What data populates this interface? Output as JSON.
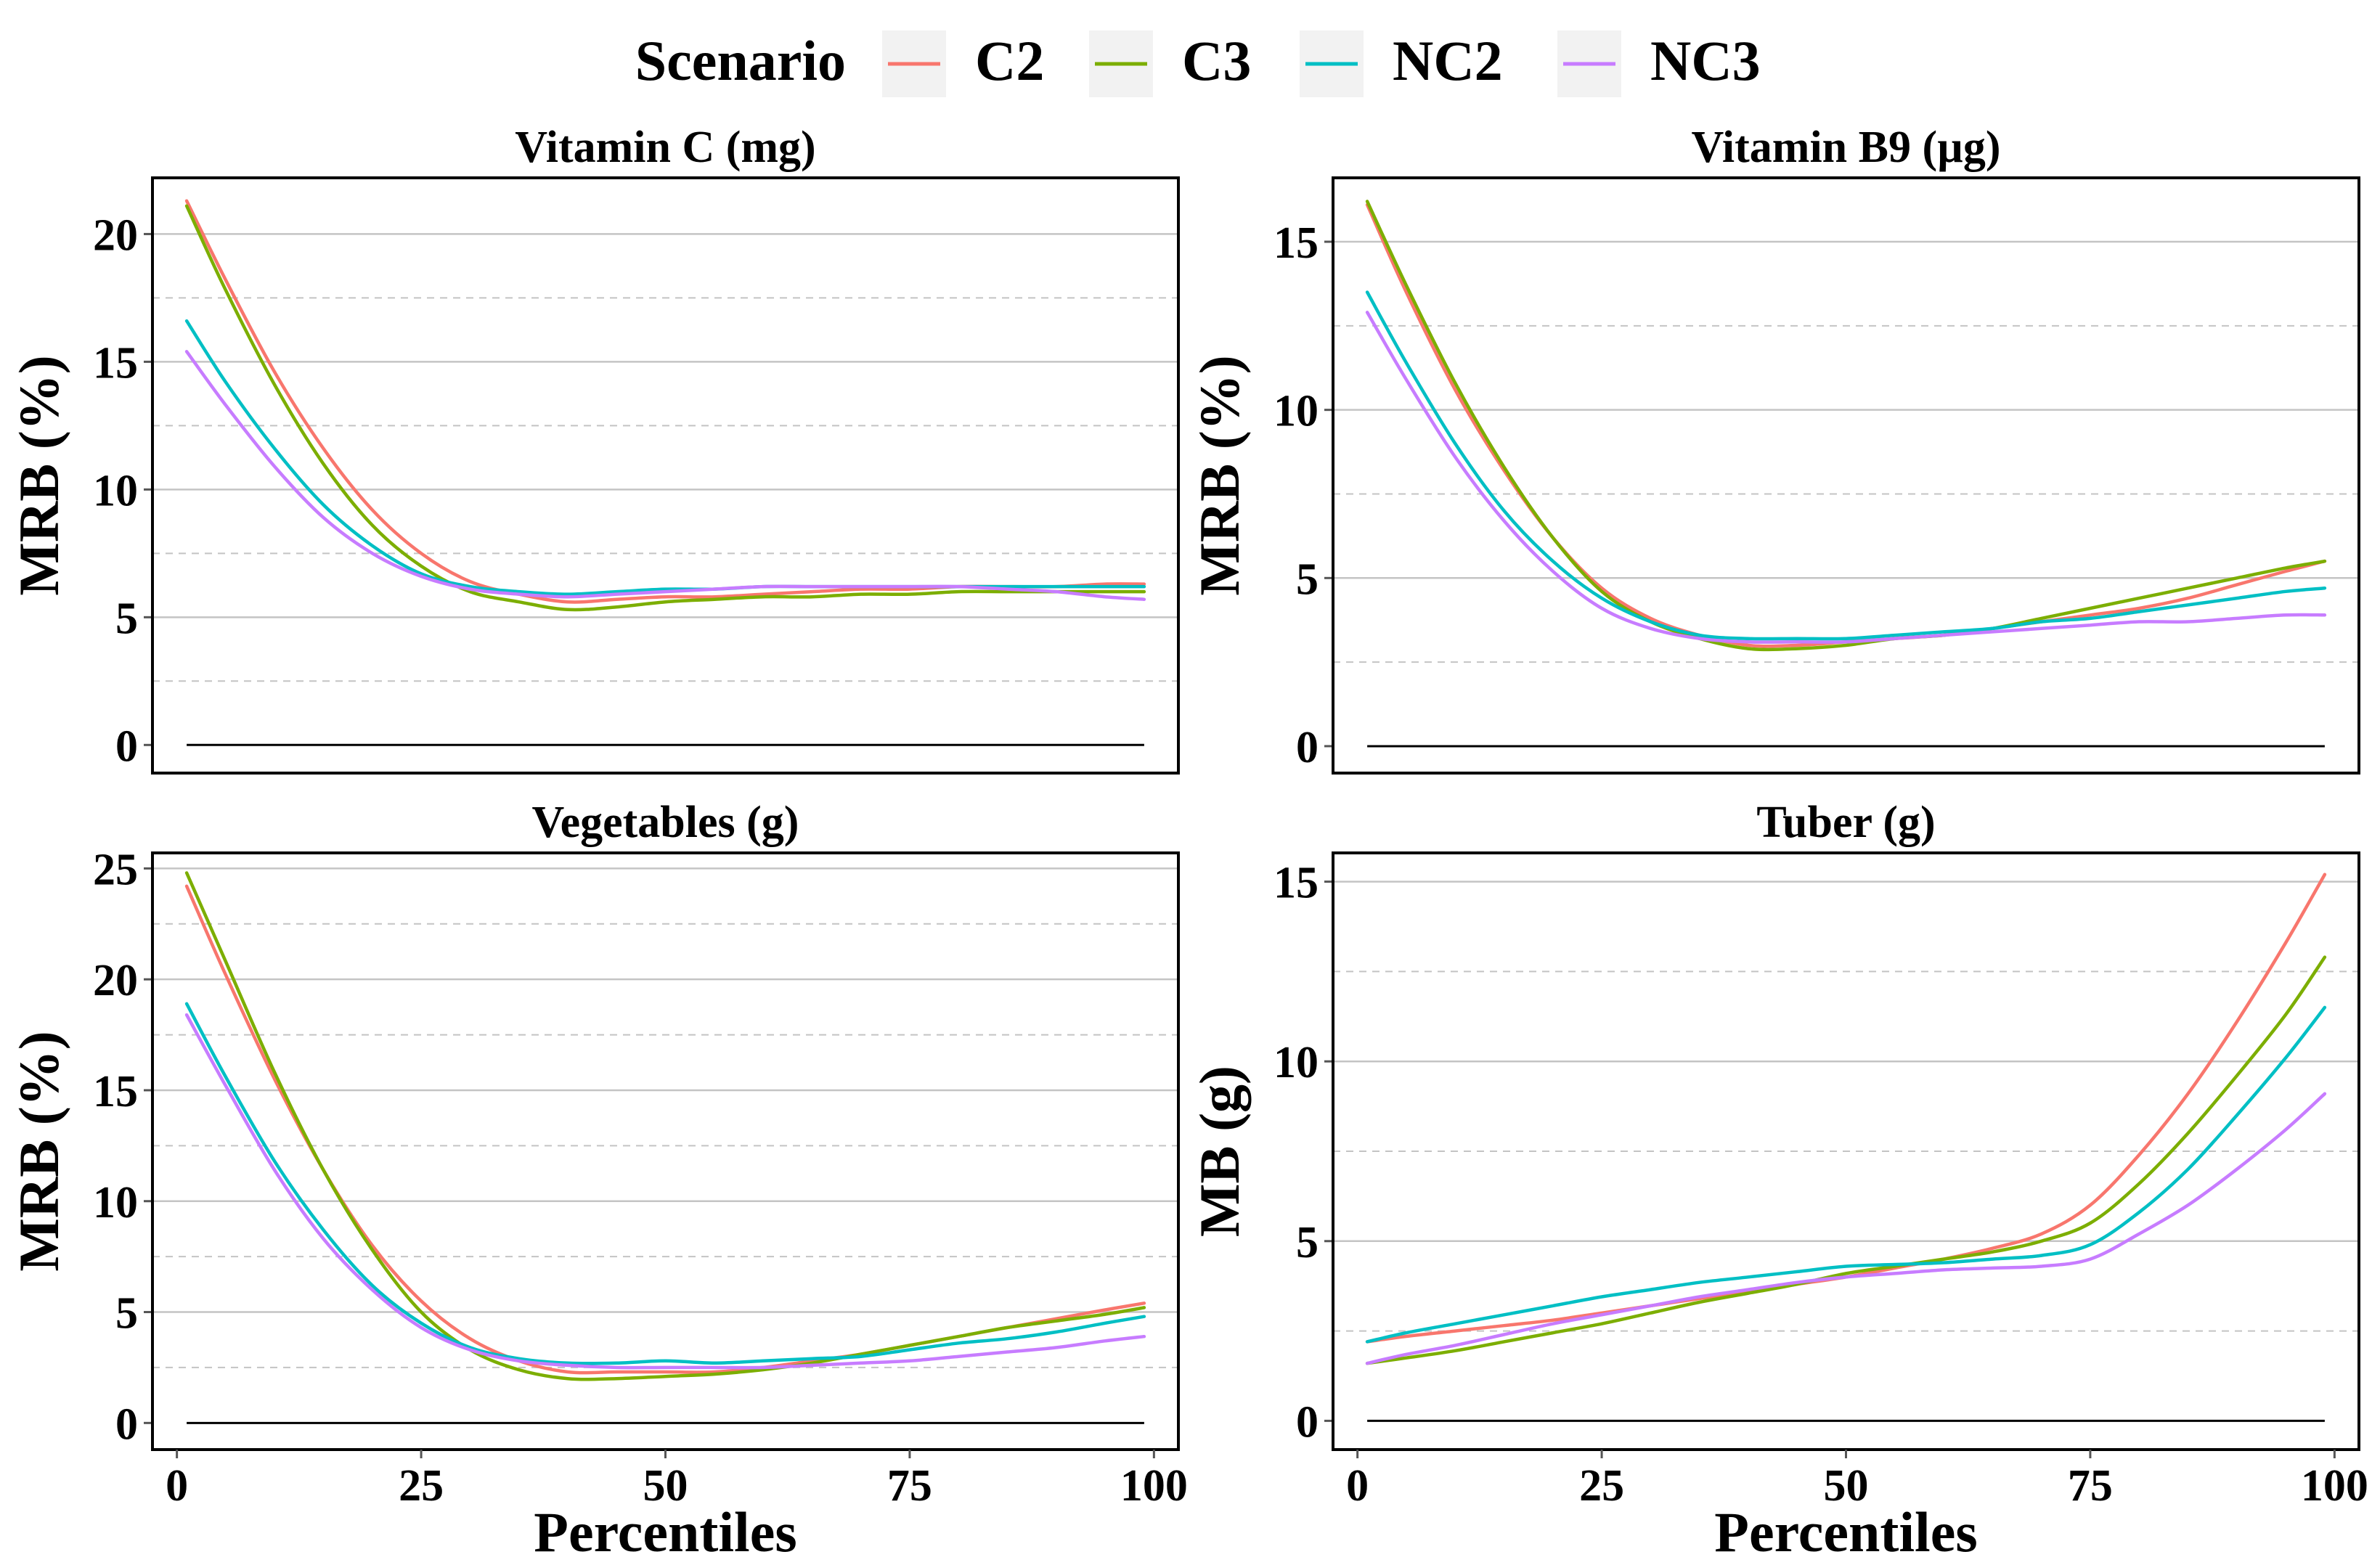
{
  "legend": {
    "title": "Scenario",
    "items": [
      {
        "name": "C2",
        "color": "#F8766D"
      },
      {
        "name": "C3",
        "color": "#7CAE00"
      },
      {
        "name": "NC2",
        "color": "#00BFC4"
      },
      {
        "name": "NC3",
        "color": "#C77CFF"
      }
    ]
  },
  "chart_data": [
    {
      "type": "line",
      "title": "Vitamin C (mg)",
      "xlabel": "",
      "ylabel": "MRB (%)",
      "xlim": [
        -2.5,
        102.5
      ],
      "ylim": [
        -1.1,
        22.2
      ],
      "xticks": [
        0,
        25,
        50,
        75,
        100
      ],
      "show_xticks": false,
      "yticks": [
        0,
        5,
        10,
        15,
        20
      ],
      "minor_yticks": [
        2.5,
        7.5,
        12.5,
        17.5
      ],
      "x": [
        1,
        5,
        10,
        15,
        20,
        25,
        30,
        35,
        40,
        45,
        50,
        55,
        60,
        65,
        70,
        75,
        80,
        85,
        90,
        95,
        99
      ],
      "series": [
        {
          "name": "C2",
          "values": [
            21.3,
            18.2,
            14.6,
            11.6,
            9.2,
            7.5,
            6.4,
            5.9,
            5.6,
            5.7,
            5.8,
            5.8,
            5.9,
            6.0,
            6.1,
            6.1,
            6.2,
            6.2,
            6.2,
            6.3,
            6.3
          ]
        },
        {
          "name": "C3",
          "values": [
            21.1,
            17.8,
            14.1,
            11.0,
            8.6,
            7.0,
            6.0,
            5.6,
            5.3,
            5.4,
            5.6,
            5.7,
            5.8,
            5.8,
            5.9,
            5.9,
            6.0,
            6.0,
            6.0,
            6.0,
            6.0
          ]
        },
        {
          "name": "NC2",
          "values": [
            16.6,
            14.2,
            11.6,
            9.4,
            7.8,
            6.7,
            6.2,
            6.0,
            5.9,
            6.0,
            6.1,
            6.1,
            6.2,
            6.2,
            6.2,
            6.2,
            6.2,
            6.2,
            6.2,
            6.2,
            6.2
          ]
        },
        {
          "name": "NC3",
          "values": [
            15.4,
            13.3,
            10.9,
            8.9,
            7.5,
            6.6,
            6.1,
            5.9,
            5.8,
            5.9,
            6.0,
            6.1,
            6.2,
            6.2,
            6.2,
            6.2,
            6.2,
            6.1,
            6.0,
            5.8,
            5.7
          ]
        }
      ]
    },
    {
      "type": "line",
      "title": "Vitamin B9 (µg)",
      "xlabel": "",
      "ylabel": "MRB (%)",
      "xlim": [
        -2.5,
        102.5
      ],
      "ylim": [
        -0.8,
        16.9
      ],
      "xticks": [
        0,
        25,
        50,
        75,
        100
      ],
      "show_xticks": false,
      "yticks": [
        0,
        5,
        10,
        15
      ],
      "minor_yticks": [
        2.5,
        7.5,
        12.5
      ],
      "x": [
        1,
        5,
        10,
        15,
        20,
        25,
        30,
        35,
        40,
        45,
        50,
        55,
        60,
        65,
        70,
        75,
        80,
        85,
        90,
        95,
        99
      ],
      "series": [
        {
          "name": "C2",
          "values": [
            16.1,
            13.5,
            10.6,
            8.2,
            6.2,
            4.7,
            3.8,
            3.3,
            3.0,
            3.0,
            3.1,
            3.2,
            3.3,
            3.5,
            3.7,
            3.9,
            4.1,
            4.4,
            4.8,
            5.2,
            5.5
          ]
        },
        {
          "name": "C3",
          "values": [
            16.2,
            13.7,
            10.8,
            8.3,
            6.2,
            4.6,
            3.7,
            3.2,
            2.9,
            2.9,
            3.0,
            3.2,
            3.3,
            3.5,
            3.8,
            4.1,
            4.4,
            4.7,
            5.0,
            5.3,
            5.5
          ]
        },
        {
          "name": "NC2",
          "values": [
            13.5,
            11.4,
            9.0,
            7.0,
            5.5,
            4.4,
            3.7,
            3.3,
            3.2,
            3.2,
            3.2,
            3.3,
            3.4,
            3.5,
            3.7,
            3.8,
            4.0,
            4.2,
            4.4,
            4.6,
            4.7
          ]
        },
        {
          "name": "NC3",
          "values": [
            12.9,
            10.9,
            8.6,
            6.7,
            5.2,
            4.1,
            3.5,
            3.2,
            3.1,
            3.1,
            3.1,
            3.2,
            3.3,
            3.4,
            3.5,
            3.6,
            3.7,
            3.7,
            3.8,
            3.9,
            3.9
          ]
        }
      ]
    },
    {
      "type": "line",
      "title": "Vegetables (g)",
      "xlabel": "Percentiles",
      "ylabel": "MRB (%)",
      "xlim": [
        -2.5,
        102.5
      ],
      "ylim": [
        -1.2,
        25.7
      ],
      "xticks": [
        0,
        25,
        50,
        75,
        100
      ],
      "show_xticks": true,
      "yticks": [
        0,
        5,
        10,
        15,
        20,
        25
      ],
      "minor_yticks": [
        2.5,
        7.5,
        12.5,
        17.5,
        22.5
      ],
      "x": [
        1,
        5,
        10,
        15,
        20,
        25,
        30,
        35,
        40,
        45,
        50,
        55,
        60,
        65,
        70,
        75,
        80,
        85,
        90,
        95,
        99
      ],
      "series": [
        {
          "name": "C2",
          "values": [
            24.2,
            20.2,
            15.5,
            11.4,
            8.0,
            5.5,
            3.8,
            2.8,
            2.3,
            2.3,
            2.3,
            2.3,
            2.5,
            2.8,
            3.1,
            3.5,
            3.9,
            4.3,
            4.7,
            5.1,
            5.4
          ]
        },
        {
          "name": "C3",
          "values": [
            24.8,
            20.8,
            15.8,
            11.4,
            7.8,
            5.0,
            3.3,
            2.4,
            2.0,
            2.0,
            2.1,
            2.2,
            2.4,
            2.7,
            3.1,
            3.5,
            3.9,
            4.3,
            4.6,
            4.9,
            5.2
          ]
        },
        {
          "name": "NC2",
          "values": [
            18.9,
            15.6,
            11.8,
            8.7,
            6.2,
            4.5,
            3.4,
            2.9,
            2.7,
            2.7,
            2.8,
            2.7,
            2.8,
            2.9,
            3.0,
            3.3,
            3.6,
            3.8,
            4.1,
            4.5,
            4.8
          ]
        },
        {
          "name": "NC3",
          "values": [
            18.4,
            15.2,
            11.4,
            8.3,
            6.0,
            4.3,
            3.3,
            2.8,
            2.6,
            2.5,
            2.5,
            2.5,
            2.5,
            2.6,
            2.7,
            2.8,
            3.0,
            3.2,
            3.4,
            3.7,
            3.9
          ]
        }
      ]
    },
    {
      "type": "line",
      "title": "Tuber (g)",
      "xlabel": "Percentiles",
      "ylabel": "MB (g)",
      "xlim": [
        -2.5,
        102.5
      ],
      "ylim": [
        -0.8,
        15.8
      ],
      "xticks": [
        0,
        25,
        50,
        75,
        100
      ],
      "show_xticks": true,
      "yticks": [
        0,
        5,
        10,
        15
      ],
      "minor_yticks": [
        2.5,
        7.5,
        12.5
      ],
      "x": [
        1,
        5,
        10,
        15,
        20,
        25,
        30,
        35,
        40,
        45,
        50,
        55,
        60,
        65,
        70,
        75,
        80,
        85,
        90,
        95,
        99
      ],
      "series": [
        {
          "name": "C2",
          "values": [
            2.2,
            2.35,
            2.5,
            2.65,
            2.8,
            3.0,
            3.2,
            3.4,
            3.6,
            3.8,
            4.0,
            4.25,
            4.5,
            4.8,
            5.2,
            6.0,
            7.4,
            9.1,
            11.1,
            13.3,
            15.2
          ]
        },
        {
          "name": "C3",
          "values": [
            1.6,
            1.75,
            1.95,
            2.2,
            2.45,
            2.7,
            3.0,
            3.3,
            3.55,
            3.8,
            4.1,
            4.3,
            4.5,
            4.7,
            5.0,
            5.5,
            6.6,
            8.0,
            9.6,
            11.3,
            12.9
          ]
        },
        {
          "name": "NC2",
          "values": [
            2.2,
            2.45,
            2.7,
            2.95,
            3.2,
            3.45,
            3.65,
            3.85,
            4.0,
            4.15,
            4.3,
            4.35,
            4.4,
            4.5,
            4.6,
            4.9,
            5.8,
            7.0,
            8.5,
            10.1,
            11.5
          ]
        },
        {
          "name": "NC3",
          "values": [
            1.6,
            1.85,
            2.1,
            2.4,
            2.7,
            2.95,
            3.2,
            3.45,
            3.65,
            3.85,
            4.0,
            4.1,
            4.2,
            4.25,
            4.3,
            4.5,
            5.2,
            6.0,
            7.0,
            8.1,
            9.1
          ]
        }
      ]
    }
  ]
}
